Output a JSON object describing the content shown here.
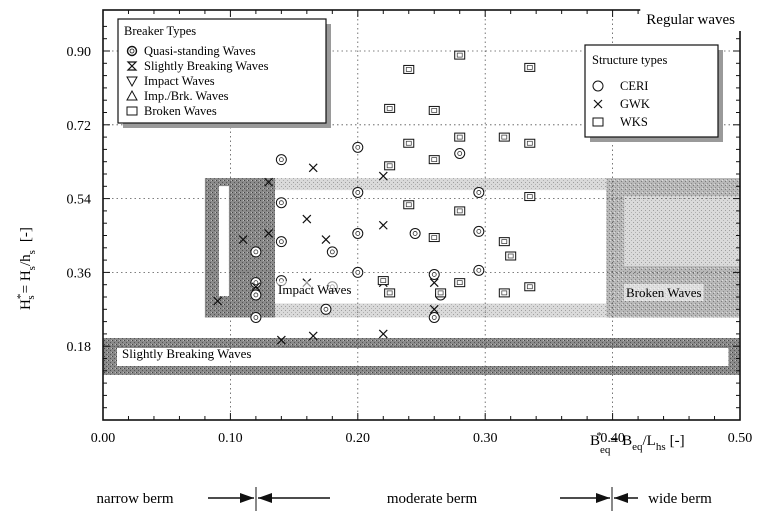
{
  "chart_data": {
    "type": "scatter",
    "title": "Regular waves",
    "xlabel": "B*eq = Beq/Lhs [-]",
    "ylabel": "H*s = Hs/hs [-]",
    "xlabel_parts": {
      "main": "B",
      "sup": "*",
      "sub": "eq",
      "rest": "= B",
      "sub2": "eq",
      "rest2": "/L",
      "sub3": "hs",
      "unit": "[-]"
    },
    "ylabel_parts": {
      "main": "H",
      "sup": "*",
      "sub": "s",
      "rest": "= H",
      "sub2": "s",
      "rest2": "/h",
      "sub3": "s",
      "unit": "[-]"
    },
    "xlim": [
      0.0,
      0.5
    ],
    "ylim": [
      0.0,
      1.0
    ],
    "x_ticks": [
      0.0,
      0.1,
      0.2,
      0.3,
      0.4,
      0.5
    ],
    "x_tick_labels": [
      "0.00",
      "0.10",
      "0.20",
      "0.30",
      "0.40",
      "0.50"
    ],
    "y_ticks": [
      0.18,
      0.36,
      0.54,
      0.72,
      0.9
    ],
    "y_tick_labels": [
      "0.18",
      "0.36",
      "0.54",
      "0.72",
      "0.90"
    ],
    "grid": true,
    "legend_breaker": {
      "title": "Breaker Types",
      "placement": "top-left",
      "entries": [
        {
          "symbol": "quasi",
          "label": "Quasi-standing Waves"
        },
        {
          "symbol": "slightly",
          "label": "Slightly Breaking Waves"
        },
        {
          "symbol": "impact",
          "label": "Impact Waves"
        },
        {
          "symbol": "impbrk",
          "label": "Imp./Brk. Waves"
        },
        {
          "symbol": "broken",
          "label": "Broken Waves"
        }
      ]
    },
    "legend_structure": {
      "title": "Structure types",
      "placement": "top-right",
      "entries": [
        {
          "symbol": "circle",
          "label": "CERI"
        },
        {
          "symbol": "cross",
          "label": "GWK"
        },
        {
          "symbol": "square",
          "label": "WKS"
        }
      ]
    },
    "regions": [
      {
        "name": "Impact Waves",
        "x_range": [
          0.08,
          0.135
        ],
        "y_range": [
          0.25,
          0.59
        ]
      },
      {
        "name": "Broken Waves",
        "x_range": [
          0.395,
          0.5
        ],
        "y_range": [
          0.25,
          0.59
        ]
      },
      {
        "name": "Slightly Breaking Waves",
        "x_range": [
          0.0,
          0.5
        ],
        "y_range": [
          0.11,
          0.2
        ]
      }
    ],
    "region_labels": {
      "impact": "Impact Waves",
      "broken": "Broken Waves",
      "slightly": "Slightly Breaking Waves"
    },
    "berm_ranges": [
      {
        "label": "narrow berm",
        "x_range": [
          0.0,
          0.12
        ]
      },
      {
        "label": "moderate berm",
        "x_range": [
          0.12,
          0.4
        ]
      },
      {
        "label": "wide berm",
        "x_range": [
          0.4,
          0.5
        ]
      }
    ],
    "series": [
      {
        "name": "CERI",
        "marker": "circle",
        "points": [
          [
            0.14,
            0.635
          ],
          [
            0.2,
            0.665
          ],
          [
            0.28,
            0.65
          ],
          [
            0.14,
            0.53
          ],
          [
            0.2,
            0.555
          ],
          [
            0.295,
            0.555
          ],
          [
            0.14,
            0.435
          ],
          [
            0.2,
            0.455
          ],
          [
            0.245,
            0.455
          ],
          [
            0.295,
            0.46
          ],
          [
            0.12,
            0.41
          ],
          [
            0.18,
            0.41
          ],
          [
            0.2,
            0.36
          ],
          [
            0.26,
            0.355
          ],
          [
            0.295,
            0.365
          ],
          [
            0.12,
            0.335
          ],
          [
            0.14,
            0.34
          ],
          [
            0.18,
            0.325
          ],
          [
            0.12,
            0.305
          ],
          [
            0.175,
            0.27
          ],
          [
            0.265,
            0.305
          ],
          [
            0.12,
            0.25
          ],
          [
            0.26,
            0.25
          ]
        ]
      },
      {
        "name": "GWK",
        "marker": "cross",
        "points": [
          [
            0.165,
            0.615
          ],
          [
            0.22,
            0.595
          ],
          [
            0.13,
            0.58
          ],
          [
            0.16,
            0.49
          ],
          [
            0.22,
            0.475
          ],
          [
            0.11,
            0.44
          ],
          [
            0.13,
            0.455
          ],
          [
            0.175,
            0.44
          ],
          [
            0.12,
            0.325
          ],
          [
            0.16,
            0.335
          ],
          [
            0.22,
            0.335
          ],
          [
            0.26,
            0.335
          ],
          [
            0.09,
            0.29
          ],
          [
            0.14,
            0.195
          ],
          [
            0.165,
            0.205
          ],
          [
            0.22,
            0.21
          ],
          [
            0.26,
            0.27
          ]
        ]
      },
      {
        "name": "WKS",
        "marker": "square",
        "points": [
          [
            0.28,
            0.89
          ],
          [
            0.24,
            0.855
          ],
          [
            0.335,
            0.86
          ],
          [
            0.225,
            0.76
          ],
          [
            0.26,
            0.755
          ],
          [
            0.24,
            0.675
          ],
          [
            0.28,
            0.69
          ],
          [
            0.315,
            0.69
          ],
          [
            0.335,
            0.675
          ],
          [
            0.225,
            0.62
          ],
          [
            0.26,
            0.635
          ],
          [
            0.24,
            0.525
          ],
          [
            0.28,
            0.51
          ],
          [
            0.335,
            0.545
          ],
          [
            0.26,
            0.445
          ],
          [
            0.315,
            0.435
          ],
          [
            0.32,
            0.4
          ],
          [
            0.22,
            0.34
          ],
          [
            0.28,
            0.335
          ],
          [
            0.335,
            0.325
          ],
          [
            0.225,
            0.31
          ],
          [
            0.265,
            0.31
          ],
          [
            0.315,
            0.31
          ]
        ]
      }
    ]
  }
}
